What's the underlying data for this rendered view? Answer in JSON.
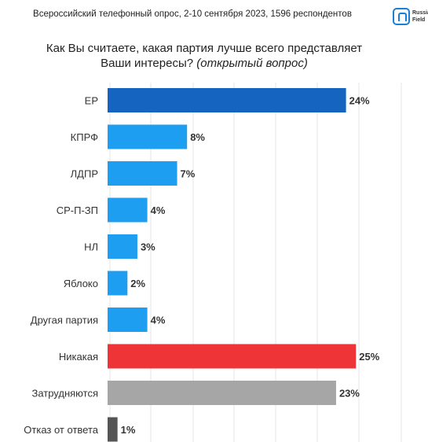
{
  "header": {
    "survey_line": "Всероссийский телефонный опрос, 2-10 сентября 2023, 1596 респондентов",
    "logo_text_1": "Russia",
    "logo_text_2": "Field",
    "logo_color": "#1a7fd6"
  },
  "question": {
    "text": "Как Вы считаете, какая партия лучше всего представляет Ваши интересы?",
    "note": "(открытый вопрос)"
  },
  "chart_data": {
    "type": "bar",
    "orientation": "horizontal",
    "title": "Как Вы считаете, какая партия лучше всего представляет Ваши интересы? (открытый вопрос)",
    "categories": [
      "ЕР",
      "КПРФ",
      "ЛДПР",
      "СР-П-ЗП",
      "НЛ",
      "Яблоко",
      "Другая партия",
      "Никакая",
      "Затрудняются",
      "Отказ от ответа"
    ],
    "values": [
      24,
      8,
      7,
      4,
      3,
      2,
      4,
      25,
      23,
      1
    ],
    "value_labels": [
      "24%",
      "8%",
      "7%",
      "4%",
      "3%",
      "2%",
      "4%",
      "25%",
      "23%",
      "1%"
    ],
    "colors": [
      "#1565c0",
      "#1e9ef0",
      "#1e9ef0",
      "#1e9ef0",
      "#1e9ef0",
      "#1e9ef0",
      "#1e9ef0",
      "#ef3438",
      "#a6a6a6",
      "#555555"
    ],
    "xlim": [
      0,
      30
    ],
    "grid": true
  }
}
